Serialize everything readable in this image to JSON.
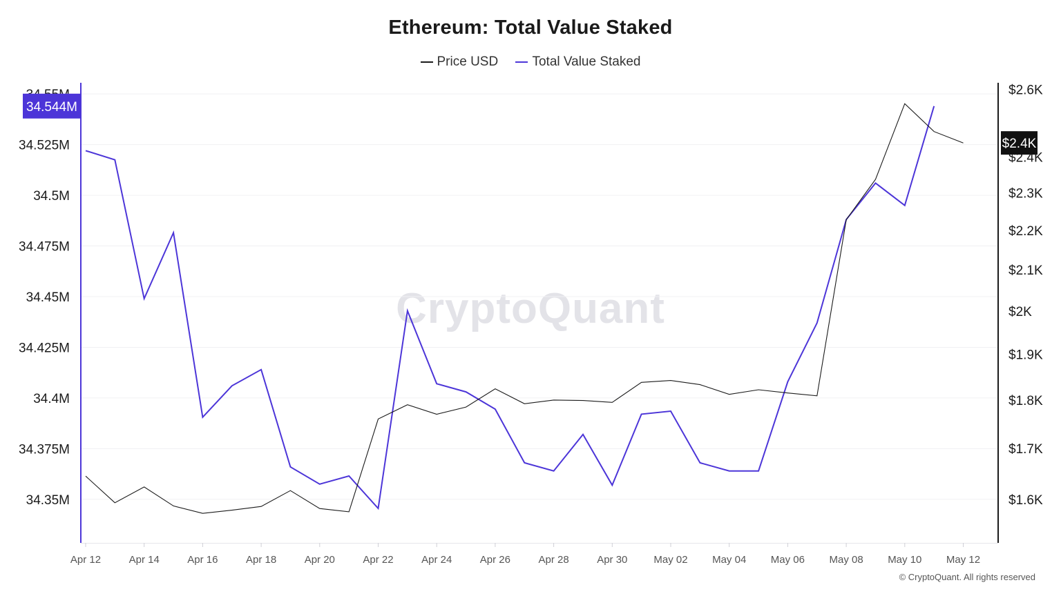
{
  "title": "Ethereum: Total Value Staked",
  "legend": [
    {
      "label": "Price USD",
      "color": "#1a1a1a"
    },
    {
      "label": "Total Value Staked",
      "color": "#4c35d8"
    }
  ],
  "watermark": "CryptoQuant",
  "copyright": "© CryptoQuant. All rights reserved",
  "chart_data": {
    "type": "line",
    "title": "Ethereum: Total Value Staked",
    "x": [
      "Apr 12",
      "Apr 13",
      "Apr 14",
      "Apr 15",
      "Apr 16",
      "Apr 17",
      "Apr 18",
      "Apr 19",
      "Apr 20",
      "Apr 21",
      "Apr 22",
      "Apr 23",
      "Apr 24",
      "Apr 25",
      "Apr 26",
      "Apr 27",
      "Apr 28",
      "Apr 29",
      "Apr 30",
      "May 01",
      "May 02",
      "May 03",
      "May 04",
      "May 05",
      "May 06",
      "May 07",
      "May 08",
      "May 09",
      "May 10",
      "May 11",
      "May 12"
    ],
    "x_tick_labels": [
      "Apr 12",
      "Apr 14",
      "Apr 16",
      "Apr 18",
      "Apr 20",
      "Apr 22",
      "Apr 24",
      "Apr 26",
      "Apr 28",
      "Apr 30",
      "May 02",
      "May 04",
      "May 06",
      "May 08",
      "May 10",
      "May 12"
    ],
    "series": [
      {
        "name": "Total Value Staked",
        "axis": "left",
        "color": "#4c35d8",
        "values": [
          34.522,
          34.5175,
          34.449,
          34.4815,
          34.3905,
          34.406,
          34.414,
          34.366,
          34.3575,
          34.3615,
          34.3455,
          34.443,
          34.407,
          34.403,
          34.3945,
          34.368,
          34.364,
          34.382,
          34.357,
          34.392,
          34.3935,
          34.368,
          34.364,
          34.364,
          34.408,
          34.437,
          34.488,
          34.506,
          34.495,
          34.544,
          null
        ]
      },
      {
        "name": "Price USD",
        "axis": "right",
        "color": "#1a1a1a",
        "values": [
          1645,
          1594,
          1624,
          1588,
          1574,
          1580,
          1587,
          1617,
          1583,
          1577,
          1760,
          1790,
          1770,
          1785,
          1824,
          1792,
          1800,
          1799,
          1795,
          1838,
          1842,
          1833,
          1812,
          1822,
          1815,
          1809,
          2228,
          2337,
          2556,
          2473,
          2440
        ]
      }
    ],
    "y_left": {
      "label": "",
      "ylim": [
        34.3285,
        34.5555
      ],
      "ticks": [
        34.35,
        34.375,
        34.4,
        34.425,
        34.45,
        34.475,
        34.5,
        34.525,
        34.55
      ],
      "tick_labels": [
        "34.35M",
        "34.375M",
        "34.4M",
        "34.425M",
        "34.45M",
        "34.475M",
        "34.5M",
        "34.525M",
        "34.55M"
      ],
      "current_value_label": "34.544M",
      "current_value": 34.544
    },
    "y_right": {
      "label": "",
      "scale": "log",
      "ylim": [
        1520,
        2620
      ],
      "ticks": [
        1600,
        1700,
        1800,
        1900,
        2000,
        2100,
        2200,
        2300,
        2400,
        2600
      ],
      "tick_labels": [
        "$1.6K",
        "$1.7K",
        "$1.8K",
        "$1.9K",
        "$2K",
        "$2.1K",
        "$2.2K",
        "$2.3K",
        "$2.4K",
        "$2.6K"
      ],
      "current_value_label": "$2.4K",
      "current_value": 2440
    },
    "grid": true
  }
}
